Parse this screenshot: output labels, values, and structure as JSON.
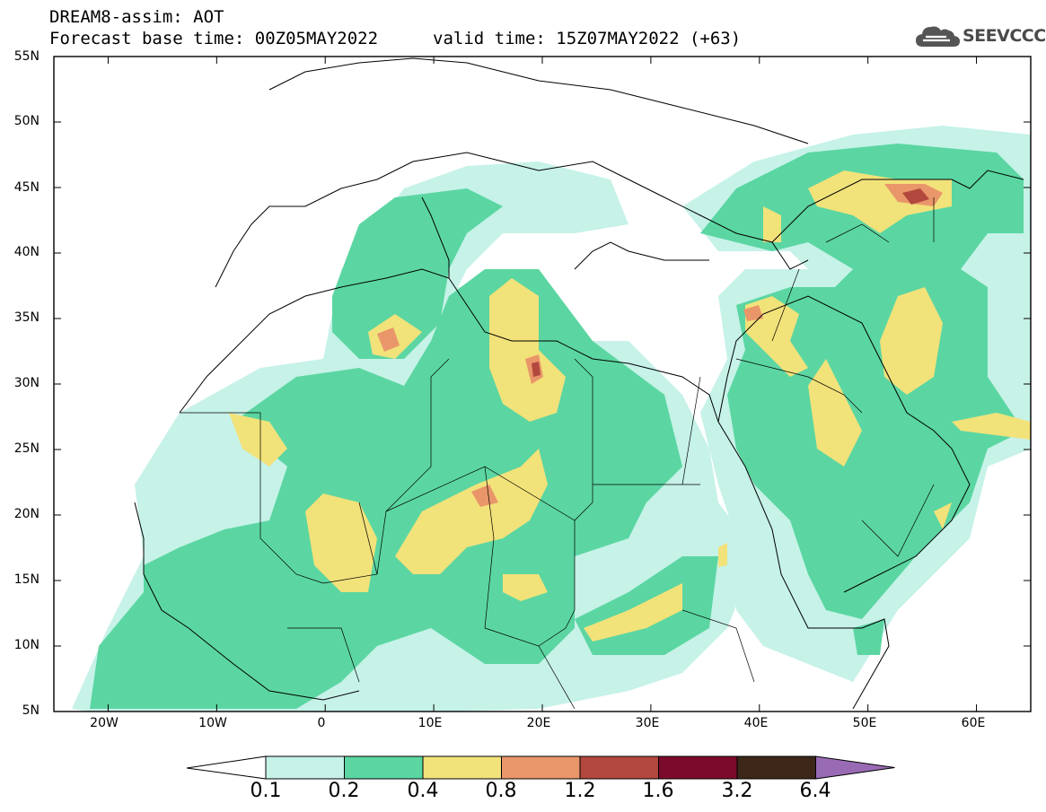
{
  "header": {
    "title": "DREAM8-assim: AOT",
    "base_time": "Forecast base time: 00Z05MAY2022",
    "valid_time": "valid time: 15Z07MAY2022 (+63)"
  },
  "logo": {
    "text": "SEEVCCC",
    "icon": "cloud-icon"
  },
  "map": {
    "lat_labels": [
      "55N",
      "50N",
      "45N",
      "40N",
      "35N",
      "30N",
      "25N",
      "20N",
      "15N",
      "10N",
      "5N"
    ],
    "lon_labels": [
      "20W",
      "10W",
      "0",
      "10E",
      "20E",
      "30E",
      "40E",
      "50E",
      "60E"
    ],
    "lat_range": [
      5,
      55
    ],
    "lon_range": [
      -25,
      65
    ]
  },
  "legend": {
    "colors": [
      "#c6f2e8",
      "#5bd6a2",
      "#f2e27a",
      "#e9966a",
      "#b2483e",
      "#7c0b2b",
      "#3d2719",
      "#9a6bb5"
    ],
    "labels": [
      "0.1",
      "0.2",
      "0.4",
      "0.8",
      "1.2",
      "1.6",
      "3.2",
      "6.4"
    ]
  }
}
